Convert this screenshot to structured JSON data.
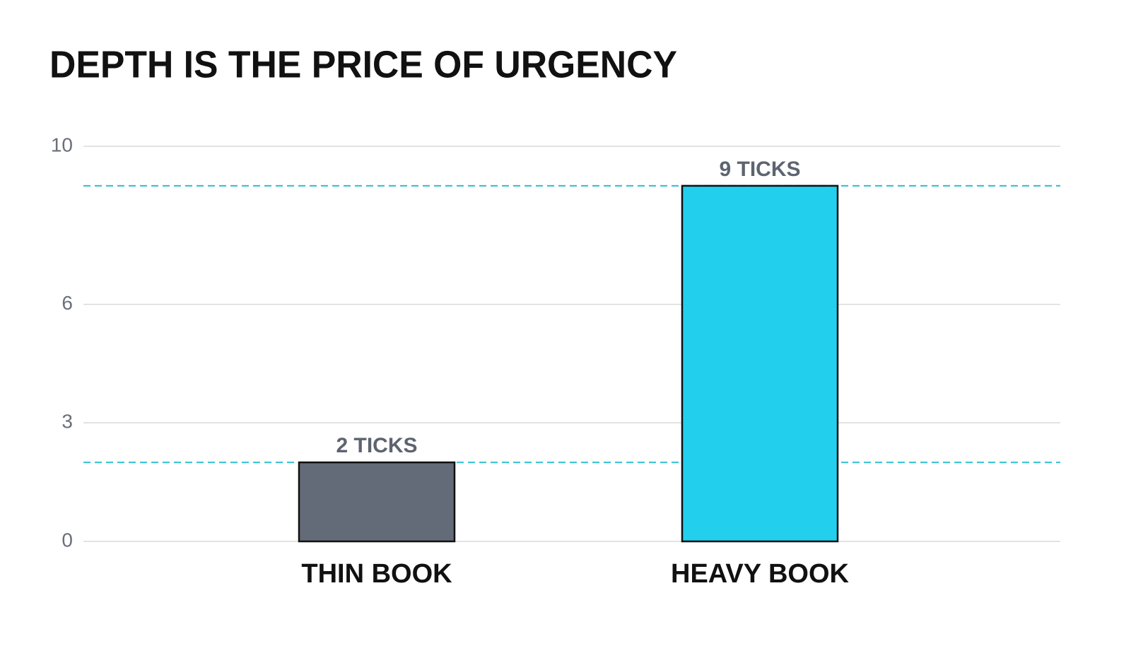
{
  "chart_data": {
    "type": "bar",
    "title": "DEPTH IS THE PRICE OF URGENCY",
    "categories": [
      "THIN BOOK",
      "HEAVY BOOK"
    ],
    "values": [
      2,
      9
    ],
    "value_labels": [
      "2 TICKS",
      "9 TICKS"
    ],
    "colors": [
      "#636b78",
      "#22d0ee"
    ],
    "reference_color": "#2bbfd0",
    "ylim": [
      0,
      10
    ],
    "yticks": [
      0,
      3,
      6,
      10
    ],
    "grid": true
  }
}
